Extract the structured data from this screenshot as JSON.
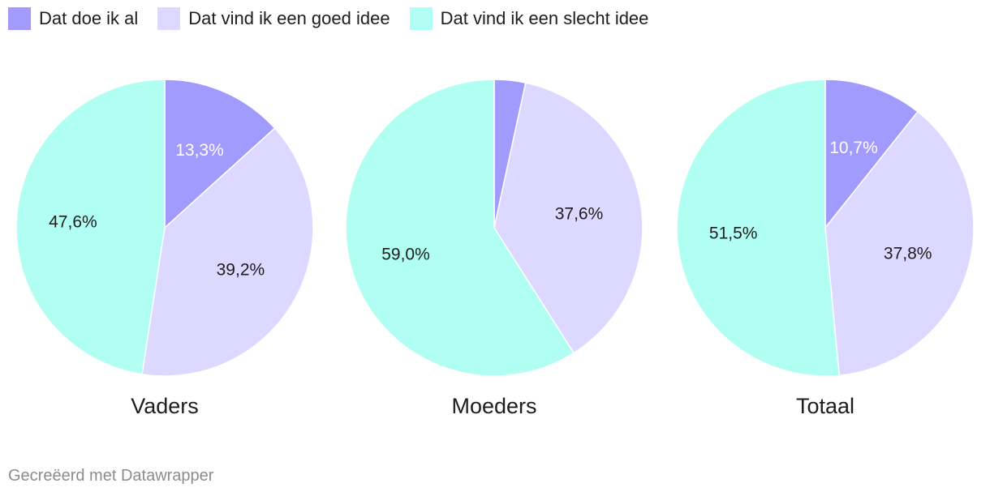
{
  "legend": {
    "items": [
      {
        "label": "Dat doe ik al",
        "color": "#a29bfe"
      },
      {
        "label": "Dat vind ik een goed idee",
        "color": "#ddd8ff"
      },
      {
        "label": "Dat vind ik een slecht idee",
        "color": "#b0fff2"
      }
    ]
  },
  "chart_data": [
    {
      "type": "pie",
      "title": "Vaders",
      "categories": [
        "Dat doe ik al",
        "Dat vind ik een goed idee",
        "Dat vind ik een slecht idee"
      ],
      "values": [
        13.3,
        39.2,
        47.6
      ],
      "value_labels": [
        "13,3%",
        "39,2%",
        "47,6%"
      ]
    },
    {
      "type": "pie",
      "title": "Moeders",
      "categories": [
        "Dat doe ik al",
        "Dat vind ik een goed idee",
        "Dat vind ik een slecht idee"
      ],
      "values": [
        3.4,
        37.6,
        59.0
      ],
      "value_labels": [
        "",
        "37,6%",
        "59,0%"
      ]
    },
    {
      "type": "pie",
      "title": "Totaal",
      "categories": [
        "Dat doe ik al",
        "Dat vind ik een goed idee",
        "Dat vind ik een slecht idee"
      ],
      "values": [
        10.7,
        37.8,
        51.5
      ],
      "value_labels": [
        "10,7%",
        "37,8%",
        "51,5%"
      ]
    }
  ],
  "footer": {
    "text": "Gecreëerd met Datawrapper"
  }
}
